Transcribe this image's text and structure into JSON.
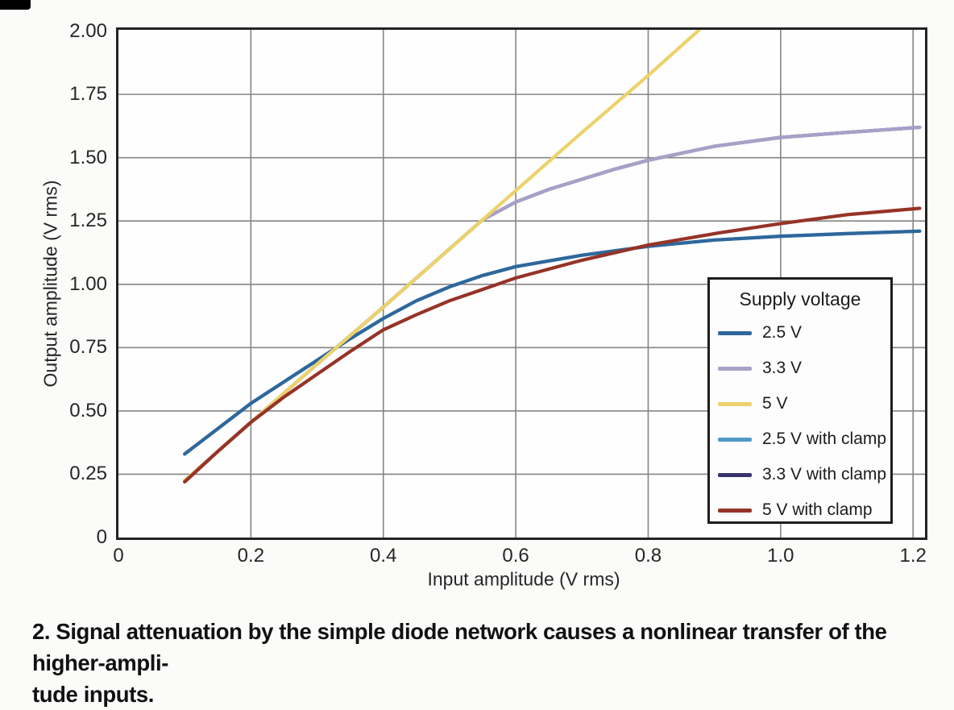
{
  "figure": {
    "caption_line1": "2. Signal attenuation by the simple diode network causes a nonlinear transfer of the higher-ampli-",
    "caption_line2": "tude inputs."
  },
  "colors": {
    "grid": "#858585",
    "frame": "#232323",
    "tick_text": "#262626",
    "caption_text": "#111111",
    "background": "#fbfbfa"
  },
  "chart_data": {
    "type": "line",
    "title": "",
    "xlabel": "Input amplitude (V rms)",
    "ylabel": "Output amplitude (V rms)",
    "xlim": [
      0,
      1.218
    ],
    "ylim": [
      0,
      2.005
    ],
    "grid": true,
    "x_grid": [
      0.2,
      0.4,
      0.6,
      0.8,
      1.0,
      1.2
    ],
    "y_grid": [
      0.25,
      0.5,
      0.75,
      1.0,
      1.25,
      1.5,
      1.75
    ],
    "x_ticks": [
      {
        "value": 0,
        "label": "0"
      },
      {
        "value": 0.2,
        "label": "0.2"
      },
      {
        "value": 0.4,
        "label": "0.4"
      },
      {
        "value": 0.6,
        "label": "0.6"
      },
      {
        "value": 0.8,
        "label": "0.8"
      },
      {
        "value": 1.0,
        "label": "1.0"
      },
      {
        "value": 1.2,
        "label": "1.2"
      }
    ],
    "y_ticks": [
      {
        "value": 2.0,
        "label": "2.00"
      },
      {
        "value": 1.75,
        "label": "1.75"
      },
      {
        "value": 1.5,
        "label": "1.50"
      },
      {
        "value": 1.25,
        "label": "1.25"
      },
      {
        "value": 1.0,
        "label": "1.00"
      },
      {
        "value": 0.75,
        "label": "0.75"
      },
      {
        "value": 0.5,
        "label": "0.50"
      },
      {
        "value": 0.25,
        "label": "0.25"
      },
      {
        "value": 0,
        "label": "0"
      }
    ],
    "legend": {
      "title": "Supply voltage",
      "position": "lower right"
    },
    "note": "The '2.5 V with clamp' and '3.3 V with clamp' curves are not visibly distinct in the plot; they coincide with (are hidden behind) the 2.5 V and 3.3 V curves. The 5 V curve is an almost straight line leaving the top of the plot near x=0.88; below x=0.55 the 3.3 V curve overlaps it and below x=0.25 it overlaps the 5 V with clamp curve.",
    "series": [
      {
        "name": "2.5 V",
        "color": "#2e679c",
        "z": 4,
        "points": [
          [
            0.1,
            0.33
          ],
          [
            0.15,
            0.43
          ],
          [
            0.2,
            0.53
          ],
          [
            0.25,
            0.615
          ],
          [
            0.3,
            0.7
          ],
          [
            0.35,
            0.785
          ],
          [
            0.4,
            0.865
          ],
          [
            0.45,
            0.935
          ],
          [
            0.5,
            0.99
          ],
          [
            0.55,
            1.035
          ],
          [
            0.6,
            1.07
          ],
          [
            0.7,
            1.115
          ],
          [
            0.8,
            1.15
          ],
          [
            0.9,
            1.175
          ],
          [
            1.0,
            1.19
          ],
          [
            1.1,
            1.2
          ],
          [
            1.21,
            1.21
          ]
        ]
      },
      {
        "name": "3.3 V",
        "color": "#a7a1c8",
        "z": 3,
        "points": [
          [
            0.1,
            0.225
          ],
          [
            0.2,
            0.455
          ],
          [
            0.3,
            0.685
          ],
          [
            0.4,
            0.91
          ],
          [
            0.5,
            1.14
          ],
          [
            0.55,
            1.255
          ],
          [
            0.6,
            1.325
          ],
          [
            0.65,
            1.375
          ],
          [
            0.7,
            1.415
          ],
          [
            0.75,
            1.455
          ],
          [
            0.8,
            1.49
          ],
          [
            0.9,
            1.545
          ],
          [
            1.0,
            1.58
          ],
          [
            1.1,
            1.6
          ],
          [
            1.21,
            1.62
          ]
        ]
      },
      {
        "name": "5 V",
        "color": "#edd26b",
        "z": 5,
        "points": [
          [
            0.1,
            0.225
          ],
          [
            0.2,
            0.455
          ],
          [
            0.3,
            0.685
          ],
          [
            0.4,
            0.91
          ],
          [
            0.5,
            1.14
          ],
          [
            0.6,
            1.37
          ],
          [
            0.7,
            1.6
          ],
          [
            0.8,
            1.825
          ],
          [
            0.877,
            2.005
          ]
        ]
      },
      {
        "name": "2.5 V with clamp",
        "color": "#4f99c6",
        "z": 1,
        "points": [
          [
            0.1,
            0.33
          ],
          [
            0.15,
            0.43
          ],
          [
            0.2,
            0.53
          ],
          [
            0.25,
            0.615
          ],
          [
            0.3,
            0.7
          ],
          [
            0.35,
            0.785
          ],
          [
            0.4,
            0.865
          ],
          [
            0.45,
            0.935
          ],
          [
            0.5,
            0.99
          ],
          [
            0.55,
            1.035
          ],
          [
            0.6,
            1.07
          ],
          [
            0.7,
            1.115
          ],
          [
            0.8,
            1.15
          ],
          [
            0.9,
            1.175
          ],
          [
            1.0,
            1.19
          ],
          [
            1.1,
            1.2
          ],
          [
            1.21,
            1.21
          ]
        ]
      },
      {
        "name": "3.3 V with clamp",
        "color": "#393370",
        "z": 2,
        "points": [
          [
            0.1,
            0.225
          ],
          [
            0.2,
            0.455
          ],
          [
            0.3,
            0.685
          ],
          [
            0.4,
            0.91
          ],
          [
            0.5,
            1.14
          ],
          [
            0.55,
            1.255
          ],
          [
            0.6,
            1.325
          ],
          [
            0.65,
            1.375
          ],
          [
            0.7,
            1.415
          ],
          [
            0.75,
            1.455
          ],
          [
            0.8,
            1.49
          ],
          [
            0.9,
            1.545
          ],
          [
            1.0,
            1.58
          ],
          [
            1.1,
            1.6
          ],
          [
            1.21,
            1.62
          ]
        ]
      },
      {
        "name": "5 V with clamp",
        "color": "#963327",
        "z": 6,
        "points": [
          [
            0.1,
            0.22
          ],
          [
            0.15,
            0.34
          ],
          [
            0.2,
            0.455
          ],
          [
            0.25,
            0.555
          ],
          [
            0.3,
            0.645
          ],
          [
            0.35,
            0.735
          ],
          [
            0.4,
            0.82
          ],
          [
            0.45,
            0.88
          ],
          [
            0.5,
            0.935
          ],
          [
            0.55,
            0.98
          ],
          [
            0.6,
            1.025
          ],
          [
            0.7,
            1.095
          ],
          [
            0.8,
            1.155
          ],
          [
            0.9,
            1.2
          ],
          [
            1.0,
            1.24
          ],
          [
            1.1,
            1.275
          ],
          [
            1.21,
            1.3
          ]
        ]
      }
    ]
  }
}
